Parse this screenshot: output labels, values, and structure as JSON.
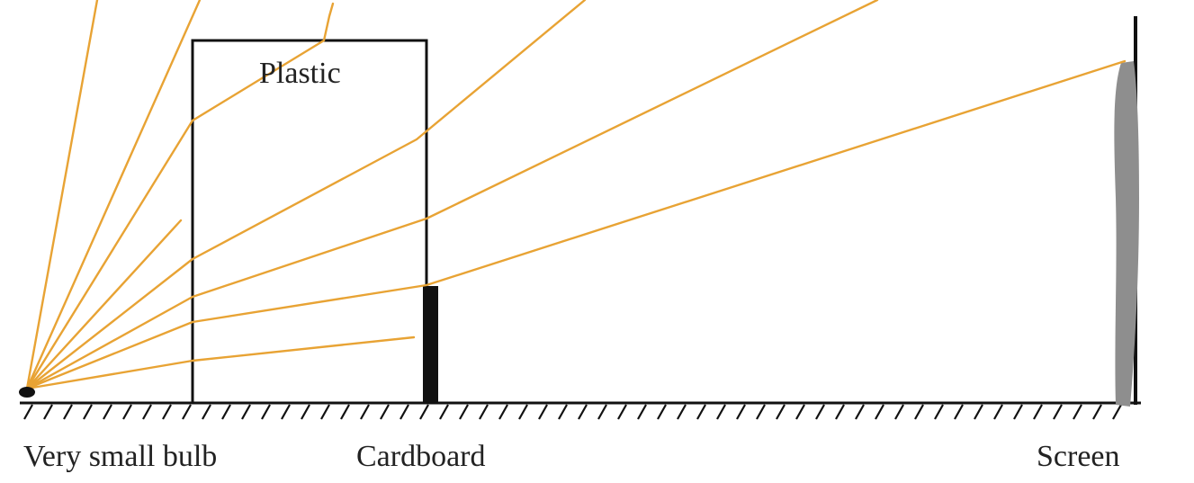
{
  "labels": {
    "plastic": "Plastic",
    "bulb": "Very small bulb",
    "cardboard": "Cardboard",
    "screen": "Screen"
  },
  "colors": {
    "ray": "#E8A334",
    "line": "#111111",
    "screen_shadow": "#8E8E8E",
    "background": "#FFFFFF"
  }
}
